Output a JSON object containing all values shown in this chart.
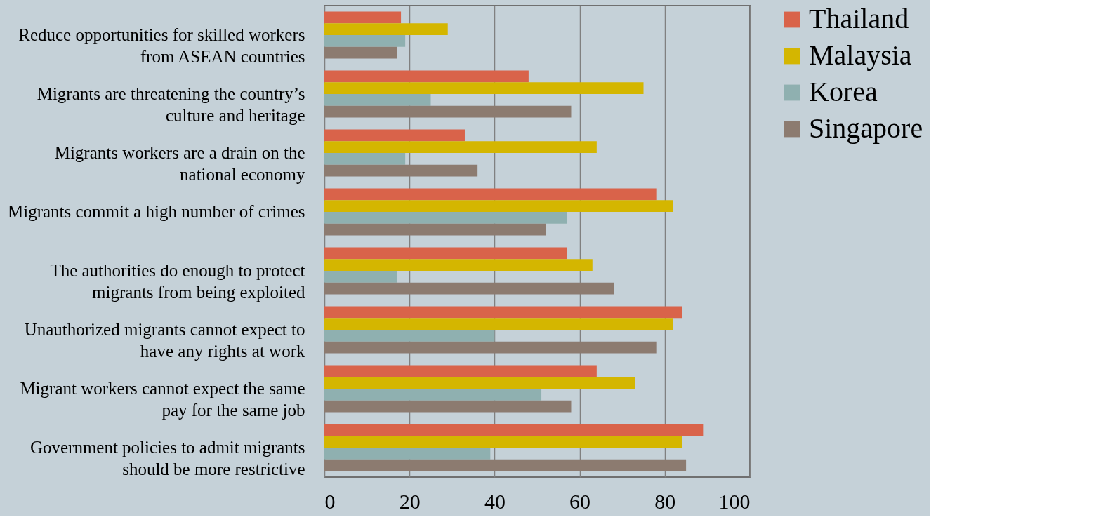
{
  "chart_data": {
    "type": "bar",
    "orientation": "horizontal",
    "categories": [
      "Reduce opportunities for skilled workers from ASEAN countries",
      "Migrants are threatening the country’s culture and heritage",
      "Migrants workers are a drain on the national economy",
      "Migrants commit a high number of crimes",
      "The authorities do enough to protect migrants from being exploited",
      "Unauthorized migrants cannot expect to have any rights at work",
      "Migrant workers cannot expect the same pay for the same job",
      "Government policies to admit migrants should be more restrictive"
    ],
    "series": [
      {
        "name": "Thailand",
        "color": "#d9634a",
        "values": [
          18,
          48,
          33,
          78,
          57,
          84,
          64,
          89
        ]
      },
      {
        "name": "Malaysia",
        "color": "#d4b600",
        "values": [
          29,
          75,
          64,
          82,
          63,
          82,
          73,
          84
        ]
      },
      {
        "name": "Korea",
        "color": "#8fb0b0",
        "values": [
          19,
          25,
          19,
          57,
          17,
          40,
          51,
          39
        ]
      },
      {
        "name": "Singapore",
        "color": "#8c7b70",
        "values": [
          17,
          58,
          36,
          52,
          68,
          78,
          58,
          85
        ]
      }
    ],
    "xlim": [
      0,
      100
    ],
    "xticks": [
      0,
      20,
      40,
      60,
      80,
      100
    ],
    "grid": "x",
    "legend": "right"
  }
}
